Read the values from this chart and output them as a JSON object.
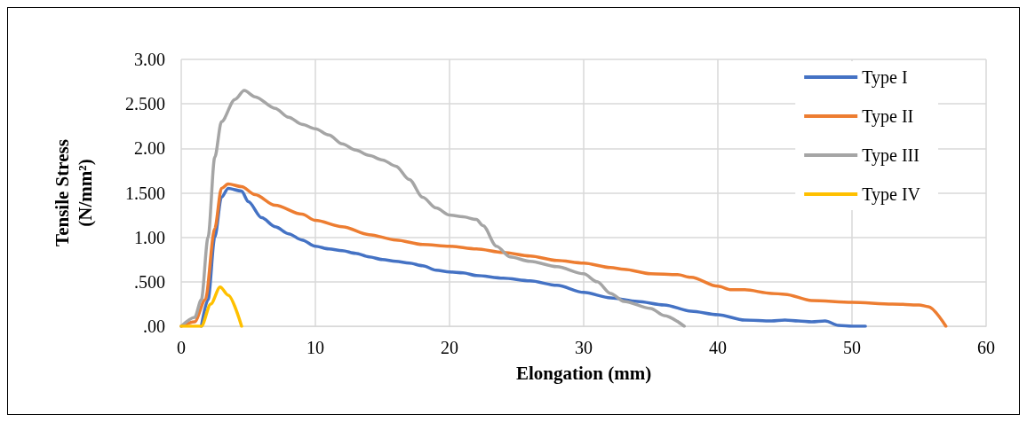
{
  "chart_data": {
    "type": "line",
    "xlabel": "Elongation (mm)",
    "ylabel": "Tensile Stress\n(N/mm²)",
    "xlim": [
      0,
      60
    ],
    "xticks": [
      0,
      10,
      20,
      30,
      40,
      50,
      60
    ],
    "ylim": [
      0,
      3
    ],
    "yticks": [
      {
        "value": 0,
        "label": ".00"
      },
      {
        "value": 0.5,
        "label": ".500"
      },
      {
        "value": 1,
        "label": "1.00"
      },
      {
        "value": 1.5,
        "label": "1.500"
      },
      {
        "value": 2,
        "label": "2.00"
      },
      {
        "value": 2.5,
        "label": "2.500"
      },
      {
        "value": 3,
        "label": "3.00"
      }
    ],
    "grid": true,
    "legend": "top right",
    "marker": "none",
    "line_style": "solid",
    "series": [
      {
        "name": "Type I",
        "color": "#4472c4",
        "x": [
          1.5,
          2,
          2.5,
          3,
          3.5,
          4.5,
          5,
          6,
          7,
          8,
          9,
          10,
          11,
          12,
          13,
          14,
          15,
          16,
          17,
          18,
          19,
          20,
          21,
          22,
          24,
          26,
          28,
          30,
          32,
          34,
          36,
          38,
          40,
          42,
          44,
          45,
          46,
          47,
          48,
          49,
          50,
          51
        ],
        "values": [
          0,
          0.3,
          1.0,
          1.45,
          1.55,
          1.52,
          1.4,
          1.22,
          1.12,
          1.04,
          0.97,
          0.9,
          0.87,
          0.85,
          0.82,
          0.78,
          0.75,
          0.73,
          0.71,
          0.68,
          0.63,
          0.61,
          0.6,
          0.57,
          0.54,
          0.51,
          0.46,
          0.38,
          0.32,
          0.28,
          0.24,
          0.17,
          0.13,
          0.07,
          0.06,
          0.07,
          0.06,
          0.05,
          0.06,
          0.01,
          0,
          0
        ]
      },
      {
        "name": "Type II",
        "color": "#ed7d31",
        "x": [
          0,
          1,
          1.8,
          2.5,
          3,
          3.5,
          4.5,
          5.5,
          7,
          9,
          10,
          12,
          14,
          16,
          18,
          20,
          22,
          24,
          26,
          28,
          30,
          32,
          33,
          35,
          37,
          38,
          40,
          41,
          42,
          44,
          45,
          47,
          50,
          53,
          55,
          55.7,
          57
        ],
        "values": [
          0,
          0.05,
          0.3,
          1.1,
          1.55,
          1.6,
          1.57,
          1.48,
          1.36,
          1.26,
          1.19,
          1.12,
          1.03,
          0.97,
          0.92,
          0.9,
          0.87,
          0.83,
          0.79,
          0.74,
          0.71,
          0.66,
          0.64,
          0.59,
          0.58,
          0.55,
          0.45,
          0.41,
          0.41,
          0.37,
          0.36,
          0.29,
          0.27,
          0.25,
          0.24,
          0.22,
          0
        ]
      },
      {
        "name": "Type III",
        "color": "#a5a5a5",
        "x": [
          0,
          1,
          1.5,
          2,
          2.5,
          3,
          4,
          4.7,
          5.5,
          7,
          8,
          9,
          10,
          11,
          12,
          13,
          14,
          15,
          16,
          17,
          18,
          19,
          20,
          21,
          22,
          22.5,
          23.5,
          24.5,
          26,
          28,
          30,
          31,
          32,
          33,
          35,
          36,
          37.5
        ],
        "values": [
          0,
          0.1,
          0.3,
          1.0,
          1.9,
          2.3,
          2.55,
          2.65,
          2.58,
          2.45,
          2.35,
          2.27,
          2.22,
          2.15,
          2.05,
          1.98,
          1.92,
          1.87,
          1.8,
          1.65,
          1.45,
          1.33,
          1.25,
          1.23,
          1.2,
          1.13,
          0.9,
          0.78,
          0.73,
          0.67,
          0.59,
          0.5,
          0.37,
          0.28,
          0.2,
          0.12,
          0
        ]
      },
      {
        "name": "Type IV",
        "color": "#ffc000",
        "x": [
          0,
          1.5,
          2.2,
          2.9,
          3.5,
          4.5
        ],
        "values": [
          0,
          0,
          0.25,
          0.44,
          0.35,
          0
        ]
      }
    ]
  }
}
